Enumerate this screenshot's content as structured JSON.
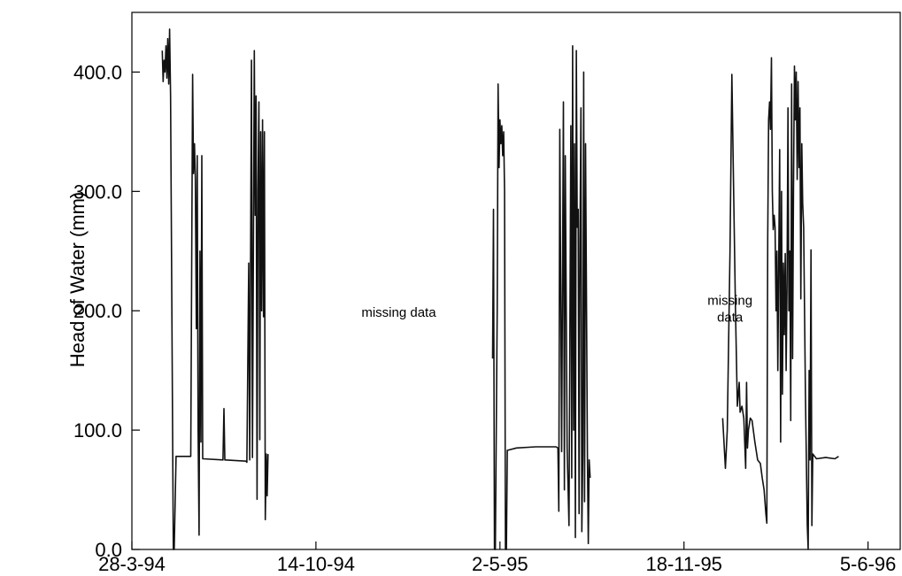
{
  "chart_data": {
    "type": "line",
    "title": "",
    "xlabel": "",
    "ylabel": "Head of Water (mm)",
    "ylim": [
      0,
      450
    ],
    "xlim": [
      "1994-03-28",
      "1996-07-10"
    ],
    "grid": false,
    "legend": "none",
    "y_ticks": [
      {
        "value": 0,
        "label": "0.0"
      },
      {
        "value": 100,
        "label": "100.0"
      },
      {
        "value": 200,
        "label": "200.0"
      },
      {
        "value": 300,
        "label": "300.0"
      },
      {
        "value": 400,
        "label": "400.0"
      }
    ],
    "x_ticks": [
      {
        "value": "1994-03-28",
        "label": "28-3-94"
      },
      {
        "value": "1994-10-14",
        "label": "14-10-94"
      },
      {
        "value": "1995-05-02",
        "label": "2-5-95"
      },
      {
        "value": "1995-11-18",
        "label": "18-11-95"
      },
      {
        "value": "1996-06-05",
        "label": "5-6-96"
      }
    ],
    "annotations": [
      {
        "lines": [
          "missing data"
        ],
        "x": "1995-01-12",
        "y": 195
      },
      {
        "lines": [
          "missing",
          "data"
        ],
        "x": "1996-01-07",
        "y": 205
      }
    ],
    "series": [
      {
        "segments": [
          [
            [
              "1994-04-30",
              418
            ],
            [
              "1994-05-01",
              392
            ],
            [
              "1994-05-02",
              410
            ],
            [
              "1994-05-03",
              400
            ],
            [
              "1994-05-04",
              422
            ],
            [
              "1994-05-05",
              395
            ],
            [
              "1994-05-06",
              428
            ],
            [
              "1994-05-07",
              390
            ],
            [
              "1994-05-08",
              436
            ],
            [
              "1994-05-09",
              380
            ],
            [
              "1994-05-12",
              0
            ],
            [
              "1994-05-13",
              0
            ],
            [
              "1994-05-15",
              78
            ],
            [
              "1994-05-31",
              78
            ],
            [
              "1994-06-02",
              398
            ],
            [
              "1994-06-03",
              315
            ],
            [
              "1994-06-04",
              340
            ],
            [
              "1994-06-05",
              310
            ],
            [
              "1994-06-06",
              185
            ],
            [
              "1994-06-07",
              330
            ],
            [
              "1994-06-08",
              100
            ],
            [
              "1994-06-09",
              12
            ],
            [
              "1994-06-10",
              250
            ],
            [
              "1994-06-11",
              90
            ],
            [
              "1994-06-12",
              330
            ],
            [
              "1994-06-13",
              76
            ],
            [
              "1994-07-05",
              75
            ],
            [
              "1994-07-06",
              118
            ],
            [
              "1994-07-07",
              75
            ],
            [
              "1994-07-30",
              74
            ],
            [
              "1994-07-31",
              73
            ],
            [
              "1994-08-02",
              240
            ],
            [
              "1994-08-03",
              75
            ],
            [
              "1994-08-05",
              410
            ],
            [
              "1994-08-06",
              77
            ],
            [
              "1994-08-08",
              418
            ],
            [
              "1994-08-09",
              280
            ],
            [
              "1994-08-10",
              380
            ],
            [
              "1994-08-11",
              42
            ],
            [
              "1994-08-12",
              300
            ],
            [
              "1994-08-13",
              375
            ],
            [
              "1994-08-14",
              92
            ],
            [
              "1994-08-15",
              350
            ],
            [
              "1994-08-16",
              200
            ],
            [
              "1994-08-17",
              360
            ],
            [
              "1994-08-18",
              195
            ],
            [
              "1994-08-19",
              350
            ],
            [
              "1994-08-20",
              25
            ],
            [
              "1994-08-21",
              80
            ],
            [
              "1994-08-22",
              45
            ],
            [
              "1994-08-23",
              80
            ]
          ],
          [
            [
              "1995-04-24",
              160
            ],
            [
              "1995-04-25",
              285
            ],
            [
              "1995-04-26",
              0
            ],
            [
              "1995-04-27",
              0
            ],
            [
              "1995-04-29",
              200
            ],
            [
              "1995-04-30",
              390
            ],
            [
              "1995-05-01",
              320
            ],
            [
              "1995-05-02",
              360
            ],
            [
              "1995-05-03",
              340
            ],
            [
              "1995-05-04",
              355
            ],
            [
              "1995-05-05",
              330
            ],
            [
              "1995-05-06",
              350
            ],
            [
              "1995-05-07",
              300
            ],
            [
              "1995-05-08",
              0
            ],
            [
              "1995-05-09",
              0
            ],
            [
              "1995-05-10",
              83
            ],
            [
              "1995-05-20",
              85
            ],
            [
              "1995-06-10",
              86
            ],
            [
              "1995-07-02",
              86
            ],
            [
              "1995-07-04",
              85
            ],
            [
              "1995-07-05",
              32
            ],
            [
              "1995-07-06",
              352
            ],
            [
              "1995-07-08",
              82
            ],
            [
              "1995-07-10",
              375
            ],
            [
              "1995-07-11",
              50
            ],
            [
              "1995-07-12",
              330
            ],
            [
              "1995-07-14",
              85
            ],
            [
              "1995-07-16",
              20
            ],
            [
              "1995-07-18",
              355
            ],
            [
              "1995-07-19",
              60
            ],
            [
              "1995-07-20",
              422
            ],
            [
              "1995-07-21",
              100
            ],
            [
              "1995-07-22",
              340
            ],
            [
              "1995-07-23",
              10
            ],
            [
              "1995-07-24",
              418
            ],
            [
              "1995-07-25",
              270
            ],
            [
              "1995-07-26",
              285
            ],
            [
              "1995-07-27",
              30
            ],
            [
              "1995-07-28",
              260
            ],
            [
              "1995-07-29",
              370
            ],
            [
              "1995-07-30",
              15
            ],
            [
              "1995-07-31",
              80
            ],
            [
              "1995-08-01",
              400
            ],
            [
              "1995-08-02",
              40
            ],
            [
              "1995-08-03",
              340
            ],
            [
              "1995-08-05",
              80
            ],
            [
              "1995-08-06",
              5
            ],
            [
              "1995-08-07",
              75
            ],
            [
              "1995-08-08",
              60
            ]
          ],
          [
            [
              "1995-12-30",
              110
            ],
            [
              "1996-01-02",
              68
            ],
            [
              "1996-01-04",
              100
            ],
            [
              "1996-01-07",
              250
            ],
            [
              "1996-01-09",
              398
            ],
            [
              "1996-01-11",
              300
            ],
            [
              "1996-01-13",
              200
            ],
            [
              "1996-01-15",
              120
            ],
            [
              "1996-01-17",
              140
            ],
            [
              "1996-01-18",
              115
            ],
            [
              "1996-01-20",
              120
            ],
            [
              "1996-01-22",
              110
            ],
            [
              "1996-01-24",
              68
            ],
            [
              "1996-01-25",
              140
            ],
            [
              "1996-01-26",
              85
            ],
            [
              "1996-01-27",
              100
            ],
            [
              "1996-01-29",
              110
            ],
            [
              "1996-01-31",
              108
            ],
            [
              "1996-02-03",
              90
            ],
            [
              "1996-02-06",
              75
            ],
            [
              "1996-02-09",
              72
            ],
            [
              "1996-02-11",
              60
            ],
            [
              "1996-02-13",
              50
            ],
            [
              "1996-02-15",
              30
            ],
            [
              "1996-02-16",
              22
            ],
            [
              "1996-02-17",
              260
            ],
            [
              "1996-02-18",
              360
            ],
            [
              "1996-02-19",
              375
            ],
            [
              "1996-02-20",
              352
            ],
            [
              "1996-02-21",
              412
            ],
            [
              "1996-02-22",
              300
            ],
            [
              "1996-02-23",
              268
            ],
            [
              "1996-02-24",
              280
            ],
            [
              "1996-02-25",
              270
            ],
            [
              "1996-02-26",
              200
            ],
            [
              "1996-02-27",
              250
            ],
            [
              "1996-02-28",
              150
            ],
            [
              "1996-03-01",
              335
            ],
            [
              "1996-03-02",
              90
            ],
            [
              "1996-03-03",
              300
            ],
            [
              "1996-03-04",
              130
            ],
            [
              "1996-03-05",
              240
            ],
            [
              "1996-03-06",
              180
            ],
            [
              "1996-03-07",
              248
            ],
            [
              "1996-03-08",
              150
            ],
            [
              "1996-03-09",
              220
            ],
            [
              "1996-03-10",
              370
            ],
            [
              "1996-03-11",
              200
            ],
            [
              "1996-03-12",
              250
            ],
            [
              "1996-03-13",
              108
            ],
            [
              "1996-03-14",
              390
            ],
            [
              "1996-03-15",
              160
            ],
            [
              "1996-03-16",
              300
            ],
            [
              "1996-03-17",
              405
            ],
            [
              "1996-03-18",
              360
            ],
            [
              "1996-03-19",
              400
            ],
            [
              "1996-03-20",
              310
            ],
            [
              "1996-03-21",
              392
            ],
            [
              "1996-03-22",
              320
            ],
            [
              "1996-03-23",
              370
            ],
            [
              "1996-03-24",
              210
            ],
            [
              "1996-03-25",
              340
            ],
            [
              "1996-03-26",
              290
            ],
            [
              "1996-03-27",
              270
            ],
            [
              "1996-03-29",
              130
            ],
            [
              "1996-03-31",
              20
            ],
            [
              "1996-04-01",
              0
            ],
            [
              "1996-04-02",
              150
            ],
            [
              "1996-04-03",
              75
            ],
            [
              "1996-04-04",
              251
            ],
            [
              "1996-04-05",
              20
            ],
            [
              "1996-04-06",
              80
            ],
            [
              "1996-04-10",
              76
            ],
            [
              "1996-04-20",
              77
            ],
            [
              "1996-04-30",
              76
            ],
            [
              "1996-05-04",
              78
            ]
          ]
        ]
      }
    ]
  }
}
